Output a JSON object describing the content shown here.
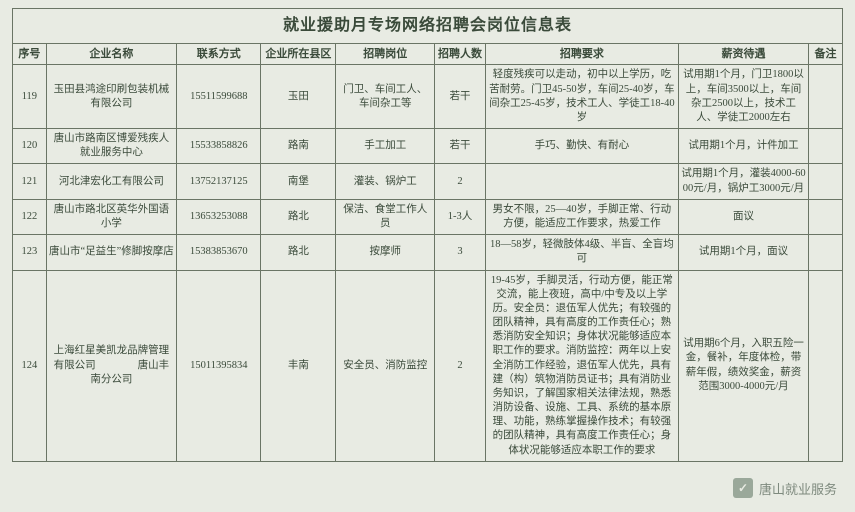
{
  "title": "就业援助月专场网络招聘会岗位信息表",
  "columns": [
    "序号",
    "企业名称",
    "联系方式",
    "企业所在县区",
    "招聘岗位",
    "招聘人数",
    "招聘要求",
    "薪资待遇",
    "备注"
  ],
  "rows": [
    {
      "no": "119",
      "company": "玉田县鸿途印刷包装机械有限公司",
      "phone": "15511599688",
      "district": "玉田",
      "position": "门卫、车间工人、车间杂工等",
      "count": "若干",
      "req": "轻度残疾可以走动，初中以上学历，吃苦耐劳。门卫45-50岁，车间25-40岁，车间杂工25-45岁，技术工人、学徒工18-40岁",
      "salary": "试用期1个月，门卫1800以上，车间3500以上，车间杂工2500以上，技术工人、学徒工2000左右",
      "note": ""
    },
    {
      "no": "120",
      "company": "唐山市路南区博爱残疾人就业服务中心",
      "phone": "15533858826",
      "district": "路南",
      "position": "手工加工",
      "count": "若干",
      "req": "手巧、勤快、有耐心",
      "salary": "试用期1个月，计件加工",
      "note": ""
    },
    {
      "no": "121",
      "company": "河北津宏化工有限公司",
      "phone": "13752137125",
      "district": "南堡",
      "position": "灌装、锅炉工",
      "count": "2",
      "req": "",
      "salary": "试用期1个月，灌装4000-6000元/月，锅炉工3000元/月",
      "note": ""
    },
    {
      "no": "122",
      "company": "唐山市路北区英华外国语小学",
      "phone": "13653253088",
      "district": "路北",
      "position": "保洁、食堂工作人员",
      "count": "1-3人",
      "req": "男女不限，25—40岁，手脚正常、行动方便，能适应工作要求，热爱工作",
      "salary": "面议",
      "note": ""
    },
    {
      "no": "123",
      "company": "唐山市“足益生”修脚按摩店",
      "phone": "15383853670",
      "district": "路北",
      "position": "按摩师",
      "count": "3",
      "req": "18—58岁，轻微肢体4级、半盲、全盲均可",
      "salary": "试用期1个月，面议",
      "note": ""
    },
    {
      "no": "124",
      "company": "上海红星美凯龙品牌管理有限公司　　　　唐山丰南分公司",
      "phone": "15011395834",
      "district": "丰南",
      "position": "安全员、消防监控",
      "count": "2",
      "req": "19-45岁，手脚灵活，行动方便，能正常交流，能上夜班，高中/中专及以上学历。安全员：退伍军人优先；有较强的团队精神，具有高度的工作责任心；熟悉消防安全知识；身体状况能够适应本职工作的要求。消防监控：两年以上安全消防工作经验，退伍军人优先，具有建（构）筑物消防员证书；具有消防业务知识，了解国家相关法律法规，熟悉消防设备、设施、工具、系统的基本原理、功能，熟练掌握操作技术；有较强的团队精神，具有高度工作责任心；身体状况能够适应本职工作的要求",
      "salary": "试用期6个月，入职五险一金，餐补，年度体检，带薪年假，绩效奖金，薪资范围3000-4000元/月",
      "note": ""
    }
  ],
  "watermark": {
    "icon": "✓",
    "text": "唐山就业服务"
  },
  "style": {
    "page_bg": "#e8ebe3",
    "border_color": "#6a7565",
    "text_color": "#3a4a3a",
    "title_fontsize": 16,
    "header_fontsize": 11,
    "cell_fontsize": 10.5
  }
}
